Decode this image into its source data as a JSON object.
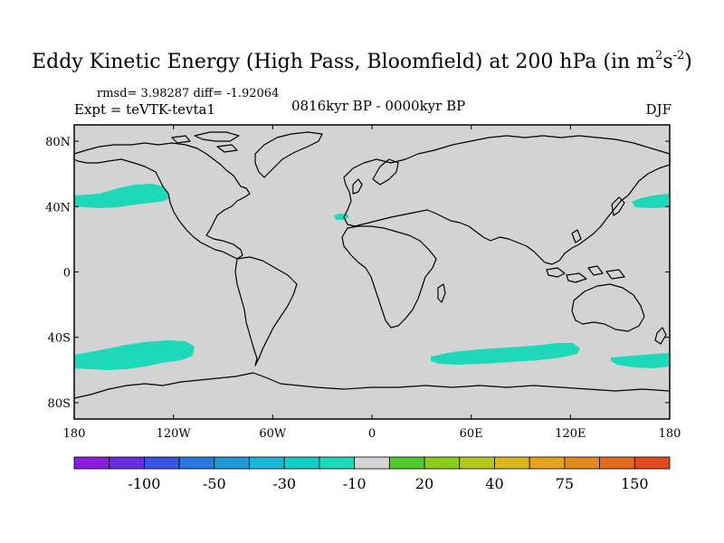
{
  "title": {
    "main": "Eddy Kinetic Energy (High Pass, Bloomfield) at 200 hPa (in m",
    "sup1": "2",
    "mid": "s",
    "sup2": "-2",
    "end": ")"
  },
  "stats": "rmsd= 3.98287 diff= -1.92064",
  "experiment": "Expt = teVTK-tevta1",
  "period": "0816kyr BP - 0000kyr BP",
  "season": "DJF",
  "map": {
    "lat_labels": [
      "80N",
      "40N",
      "0",
      "40S",
      "80S"
    ],
    "lat_values": [
      80,
      40,
      0,
      -40,
      -80
    ],
    "lon_labels": [
      "180",
      "120W",
      "60W",
      "0",
      "60E",
      "120E",
      "180"
    ],
    "lon_values": [
      -180,
      -120,
      -60,
      0,
      60,
      120,
      180
    ],
    "lat_range": [
      -90,
      90
    ],
    "lon_range": [
      -180,
      180
    ],
    "ocean_color": "#d3d3d3",
    "anomaly_color": "#1ed9b9"
  },
  "colorbar": {
    "colors": [
      "#8a1de0",
      "#6a2de0",
      "#3a54e0",
      "#2a78e2",
      "#1e9ad8",
      "#1ab8d6",
      "#10cfc8",
      "#1ed9b9",
      "#d3d3d3",
      "#4fcc2a",
      "#8ccb1a",
      "#b8c81a",
      "#d8b81c",
      "#e2a41c",
      "#e38a1c",
      "#e36c1c",
      "#e04a1c"
    ],
    "labels": [
      "-100",
      "-50",
      "-30",
      "-10",
      "20",
      "40",
      "75",
      "150"
    ]
  }
}
